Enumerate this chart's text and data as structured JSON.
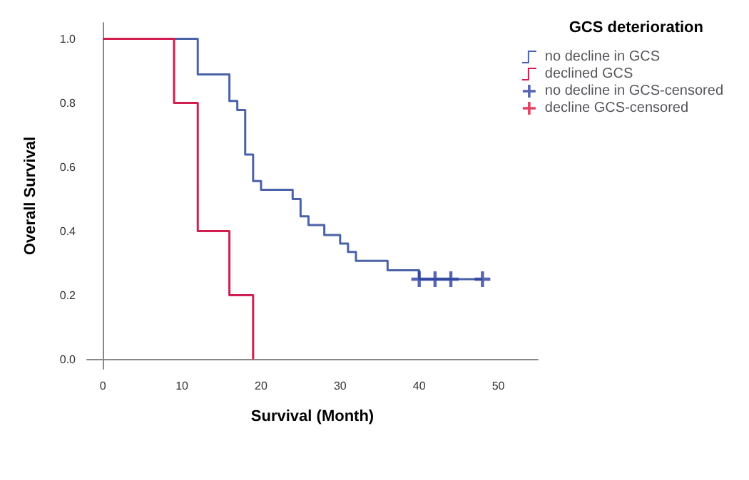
{
  "chart_data": {
    "type": "step",
    "xlabel": "Survival (Month)",
    "ylabel": "Overall Survival",
    "legend_title": "GCS deterioration",
    "legend": "top right",
    "grid": false,
    "marker": "none",
    "line_style": "solid",
    "xlim": [
      -2,
      55
    ],
    "xticks": [
      0,
      10,
      20,
      30,
      40,
      50
    ],
    "ylim": [
      -0.03,
      1.05
    ],
    "yticks": [
      {
        "value": 0,
        "label": "0.0"
      },
      {
        "value": 0.2,
        "label": "0.2"
      },
      {
        "value": 0.4,
        "label": "0.4"
      },
      {
        "value": 0.6,
        "label": "0.6"
      },
      {
        "value": 0.8,
        "label": "0.8"
      },
      {
        "value": 1,
        "label": "1.0"
      }
    ],
    "series": [
      {
        "name": "no decline in GCS",
        "color": "#4a62a8",
        "x": [
          0,
          12,
          16,
          17,
          18,
          19,
          20,
          24,
          25,
          26,
          28,
          30,
          31,
          32,
          36,
          40,
          48
        ],
        "values": [
          1,
          0.889,
          0.806,
          0.778,
          0.639,
          0.556,
          0.529,
          0.5,
          0.446,
          0.419,
          0.388,
          0.361,
          0.335,
          0.307,
          0.278,
          0.25,
          0.25
        ]
      },
      {
        "name": "declined GCS",
        "color": "#d11d4f",
        "x": [
          0,
          9,
          12,
          16,
          19
        ],
        "values": [
          1,
          0.8,
          0.4,
          0.2,
          0
        ]
      },
      {
        "name": "no decline in GCS-censored",
        "type": "scatter",
        "marker": "cross",
        "color": "#2a3fa0",
        "x": [
          40,
          42,
          44,
          48
        ],
        "values": [
          0.25,
          0.25,
          0.25,
          0.25
        ]
      },
      {
        "name": "decline GCS-censored",
        "type": "scatter",
        "marker": "cross",
        "color": "#e0103a"
      }
    ]
  }
}
